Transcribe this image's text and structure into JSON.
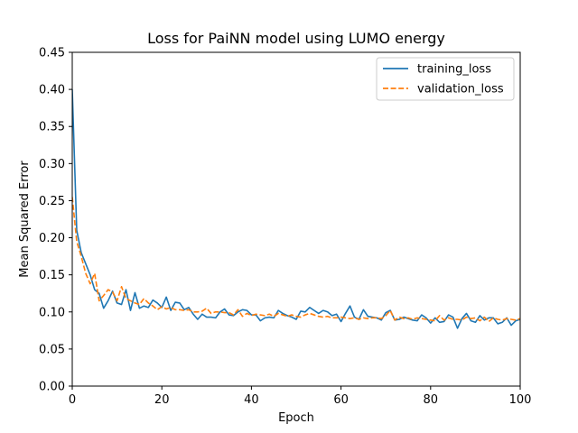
{
  "chart_data": {
    "type": "line",
    "title": "Loss for PaiNN model using LUMO energy",
    "xlabel": "Epoch",
    "ylabel": "Mean Squared Error",
    "xlim": [
      0,
      100
    ],
    "ylim": [
      0,
      0.45
    ],
    "xticks": [
      0,
      20,
      40,
      60,
      80,
      100
    ],
    "yticks": [
      0.0,
      0.05,
      0.1,
      0.15,
      0.2,
      0.25,
      0.3,
      0.35,
      0.4,
      0.45
    ],
    "ytick_labels": [
      "0.00",
      "0.05",
      "0.10",
      "0.15",
      "0.20",
      "0.25",
      "0.30",
      "0.35",
      "0.40",
      "0.45"
    ],
    "legend_position": "top-right",
    "series": [
      {
        "name": "training_loss",
        "color": "#1f77b4",
        "style": "solid",
        "values": [
          0.4,
          0.21,
          0.18,
          0.165,
          0.15,
          0.13,
          0.125,
          0.105,
          0.115,
          0.128,
          0.112,
          0.11,
          0.13,
          0.102,
          0.126,
          0.105,
          0.108,
          0.106,
          0.116,
          0.112,
          0.106,
          0.12,
          0.102,
          0.113,
          0.112,
          0.103,
          0.106,
          0.097,
          0.09,
          0.097,
          0.093,
          0.093,
          0.092,
          0.1,
          0.104,
          0.096,
          0.095,
          0.1,
          0.103,
          0.102,
          0.096,
          0.096,
          0.088,
          0.092,
          0.093,
          0.092,
          0.102,
          0.098,
          0.095,
          0.093,
          0.09,
          0.101,
          0.1,
          0.106,
          0.102,
          0.098,
          0.102,
          0.1,
          0.095,
          0.097,
          0.087,
          0.098,
          0.108,
          0.093,
          0.09,
          0.103,
          0.094,
          0.093,
          0.092,
          0.089,
          0.099,
          0.102,
          0.089,
          0.09,
          0.093,
          0.091,
          0.089,
          0.088,
          0.096,
          0.092,
          0.085,
          0.092,
          0.086,
          0.087,
          0.096,
          0.093,
          0.078,
          0.091,
          0.098,
          0.088,
          0.086,
          0.095,
          0.089,
          0.092,
          0.092,
          0.084,
          0.086,
          0.092,
          0.082,
          0.088,
          0.09
        ],
        "markers": "none"
      },
      {
        "name": "validation_loss",
        "color": "#ff7f0e",
        "style": "dashed",
        "values": [
          0.255,
          0.195,
          0.175,
          0.152,
          0.138,
          0.152,
          0.115,
          0.122,
          0.13,
          0.127,
          0.115,
          0.134,
          0.118,
          0.115,
          0.112,
          0.11,
          0.118,
          0.112,
          0.108,
          0.103,
          0.107,
          0.104,
          0.106,
          0.103,
          0.103,
          0.102,
          0.103,
          0.1,
          0.1,
          0.101,
          0.105,
          0.098,
          0.1,
          0.1,
          0.099,
          0.099,
          0.096,
          0.103,
          0.094,
          0.098,
          0.095,
          0.097,
          0.096,
          0.095,
          0.097,
          0.094,
          0.098,
          0.096,
          0.094,
          0.096,
          0.094,
          0.093,
          0.096,
          0.098,
          0.096,
          0.094,
          0.093,
          0.094,
          0.092,
          0.092,
          0.093,
          0.092,
          0.091,
          0.092,
          0.09,
          0.092,
          0.091,
          0.092,
          0.092,
          0.091,
          0.095,
          0.102,
          0.089,
          0.093,
          0.091,
          0.092,
          0.09,
          0.092,
          0.091,
          0.09,
          0.089,
          0.088,
          0.095,
          0.089,
          0.092,
          0.09,
          0.09,
          0.089,
          0.093,
          0.091,
          0.092,
          0.088,
          0.093,
          0.087,
          0.092,
          0.09,
          0.089,
          0.091,
          0.09,
          0.089,
          0.091
        ],
        "markers": "none"
      }
    ]
  }
}
